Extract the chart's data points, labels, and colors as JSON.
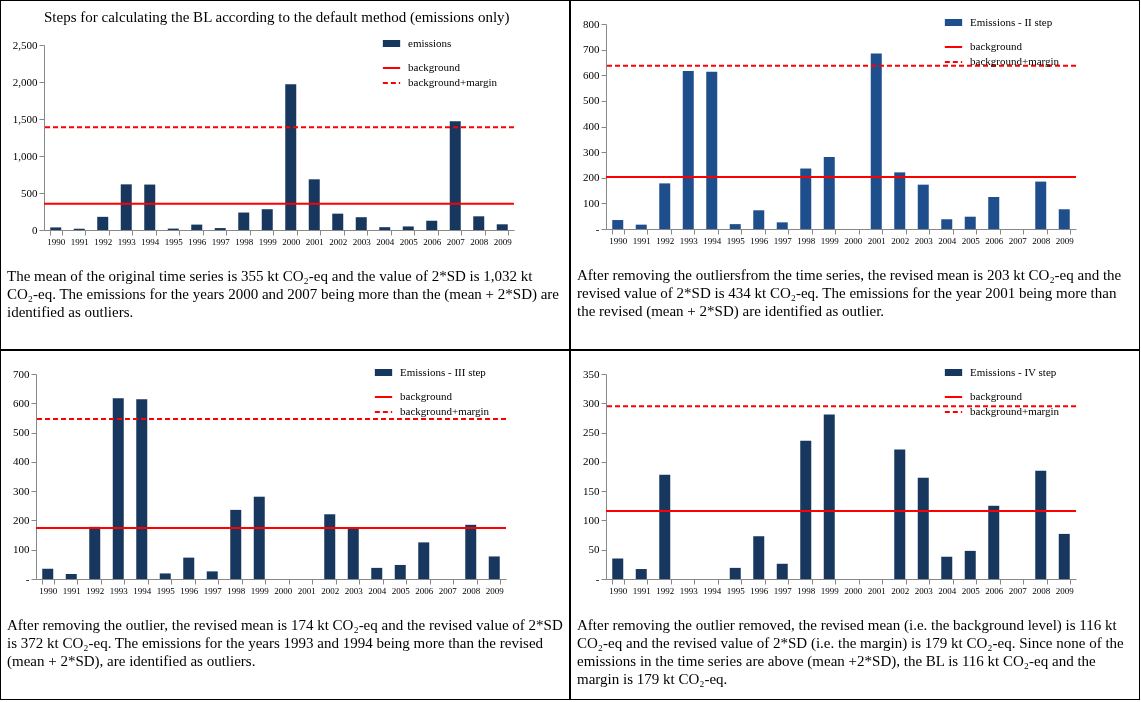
{
  "chart_data": [
    {
      "type": "bar",
      "title": "Steps for calculating the BL according to the default method (emissions only)",
      "categories": [
        "1990",
        "1991",
        "1992",
        "1993",
        "1994",
        "1995",
        "1996",
        "1997",
        "1998",
        "1999",
        "2000",
        "2001",
        "2002",
        "2003",
        "2004",
        "2005",
        "2006",
        "2007",
        "2008",
        "2009"
      ],
      "series": [
        {
          "name": "emissions",
          "color": "#17375e",
          "values": [
            35,
            17,
            178,
            617,
            614,
            19,
            73,
            26,
            236,
            281,
            1970,
            685,
            221,
            173,
            38,
            48,
            125,
            1470,
            185,
            77
          ]
        }
      ],
      "ylim": [
        0,
        2500
      ],
      "yticks": [
        0,
        500,
        {
          "value": 1000,
          "label": "1,000"
        },
        {
          "value": 1500,
          "label": "1,500"
        },
        {
          "value": 2000,
          "label": "2,000"
        },
        {
          "value": 2500,
          "label": "2,500"
        }
      ],
      "ref_lines": [
        {
          "axis": "y",
          "value": 355,
          "label": "background",
          "color": "#ff0000",
          "line_style": "solid"
        },
        {
          "axis": "y",
          "value": 1387,
          "label": "background+margin",
          "color": "#ff0000",
          "line_style": "dashed"
        }
      ],
      "legend": "top right",
      "grid": false,
      "annotations": [
        "The mean of the original time series is 355 kt CO₂-eq and  the value of 2*SD is 1,032 kt CO₂-eq. The emissions for the years 2000 and 2007 being more than the (mean + 2*SD) are identified as outliers."
      ]
    },
    {
      "type": "bar",
      "categories": [
        "1990",
        "1991",
        "1992",
        "1993",
        "1994",
        "1995",
        "1996",
        "1997",
        "1998",
        "1999",
        "2000",
        "2001",
        "2002",
        "2003",
        "2004",
        "2005",
        "2006",
        "2007",
        "2008",
        "2009"
      ],
      "series": [
        {
          "name": "Emissions - II step",
          "color": "#1f4e8c",
          "values": [
            35,
            17,
            178,
            617,
            614,
            19,
            73,
            26,
            236,
            281,
            null,
            685,
            221,
            173,
            38,
            48,
            125,
            null,
            185,
            77
          ]
        }
      ],
      "ylim": [
        0,
        800
      ],
      "yticks": [
        {
          "value": 0,
          "label": "-"
        },
        100,
        200,
        300,
        400,
        500,
        600,
        700,
        800
      ],
      "ref_lines": [
        {
          "axis": "y",
          "value": 203,
          "label": "background",
          "color": "#ff0000",
          "line_style": "solid"
        },
        {
          "axis": "y",
          "value": 637,
          "label": "background+margin",
          "color": "#ff0000",
          "line_style": "dashed"
        }
      ],
      "legend": "top right",
      "grid": false,
      "annotations": [
        "After removing the outliersfrom the time series, the revised mean is 203 kt CO₂-eq and the revised value of 2*SD is 434 kt CO₂-eq. The emissions for the year 2001 being more than the revised (mean + 2*SD) are identified as outlier."
      ]
    },
    {
      "type": "bar",
      "categories": [
        "1990",
        "1991",
        "1992",
        "1993",
        "1994",
        "1995",
        "1996",
        "1997",
        "1998",
        "1999",
        "2000",
        "2001",
        "2002",
        "2003",
        "2004",
        "2005",
        "2006",
        "2007",
        "2008",
        "2009"
      ],
      "series": [
        {
          "name": "Emissions - III step",
          "color": "#17375e",
          "values": [
            35,
            17,
            178,
            617,
            614,
            19,
            73,
            26,
            236,
            281,
            null,
            null,
            221,
            173,
            38,
            48,
            125,
            null,
            185,
            77
          ]
        }
      ],
      "ylim": [
        0,
        700
      ],
      "yticks": [
        {
          "value": 0,
          "label": "-"
        },
        100,
        200,
        300,
        400,
        500,
        600,
        700
      ],
      "ref_lines": [
        {
          "axis": "y",
          "value": 174,
          "label": "background",
          "color": "#ff0000",
          "line_style": "solid"
        },
        {
          "axis": "y",
          "value": 546,
          "label": "background+margin",
          "color": "#ff0000",
          "line_style": "dashed"
        }
      ],
      "legend": "top right",
      "grid": false,
      "annotations": [
        "After removing the outlier, the revised mean is 174 kt CO₂-eq and the revised value of 2*SD is 372 kt CO₂-eq. The emissions for the years 1993 and 1994 being more than the revised (mean + 2*SD), are identified as outliers."
      ]
    },
    {
      "type": "bar",
      "categories": [
        "1990",
        "1991",
        "1992",
        "1993",
        "1994",
        "1995",
        "1996",
        "1997",
        "1998",
        "1999",
        "2000",
        "2001",
        "2002",
        "2003",
        "2004",
        "2005",
        "2006",
        "2007",
        "2008",
        "2009"
      ],
      "series": [
        {
          "name": "Emissions - IV step",
          "color": "#17375e",
          "values": [
            35,
            17,
            178,
            null,
            null,
            19,
            73,
            26,
            236,
            281,
            null,
            null,
            221,
            173,
            38,
            48,
            125,
            null,
            185,
            77
          ]
        }
      ],
      "ylim": [
        0,
        350
      ],
      "yticks": [
        {
          "value": 0,
          "label": "-"
        },
        50,
        100,
        150,
        200,
        250,
        300,
        350
      ],
      "ref_lines": [
        {
          "axis": "y",
          "value": 116,
          "label": "background",
          "color": "#ff0000",
          "line_style": "solid"
        },
        {
          "axis": "y",
          "value": 295,
          "label": "background+margin",
          "color": "#ff0000",
          "line_style": "dashed"
        }
      ],
      "legend": "top right",
      "grid": false,
      "annotations": [
        "After removing the outlier removed, the revised mean (i.e. the background level) is 116 kt CO₂-eq and the revised value of 2*SD (i.e. the margin) is 179 kt CO₂-eq. Since none of the emissions in the time series are above (mean +2*SD), the BL is 116 kt CO₂-eq and the margin is 179 kt CO₂-eq."
      ]
    }
  ]
}
